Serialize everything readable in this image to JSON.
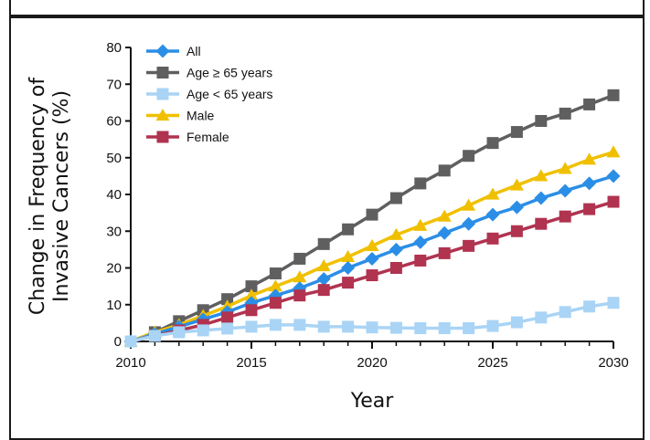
{
  "chart_data": {
    "type": "line",
    "title": "",
    "xlabel": "Year",
    "ylabel_line1": "Change in Frequency of",
    "ylabel_line2": "Invasive Cancers (%)",
    "x": [
      2010,
      2011,
      2012,
      2013,
      2014,
      2015,
      2016,
      2017,
      2018,
      2019,
      2020,
      2021,
      2022,
      2023,
      2024,
      2025,
      2026,
      2027,
      2028,
      2029,
      2030
    ],
    "xlim": [
      2010,
      2030
    ],
    "ylim": [
      0,
      80
    ],
    "xticks": [
      2010,
      2015,
      2020,
      2025,
      2030
    ],
    "yticks": [
      0,
      10,
      20,
      30,
      40,
      50,
      60,
      70,
      80
    ],
    "grid": false,
    "legend_position": "top-left",
    "series": [
      {
        "name": "All",
        "color": "#2b8ee6",
        "marker": "diamond",
        "values": [
          0,
          2,
          4,
          6,
          8,
          10.5,
          12.5,
          14.5,
          17,
          20,
          22.5,
          25,
          27,
          29.5,
          32,
          34.5,
          36.5,
          39,
          41,
          43,
          45
        ]
      },
      {
        "name": "Age ≥ 65 years",
        "color": "#5f5f5f",
        "marker": "square",
        "values": [
          0,
          2.5,
          5.5,
          8.5,
          11.5,
          15,
          18.5,
          22.5,
          26.5,
          30.5,
          34.5,
          39,
          43,
          46.5,
          50.5,
          54,
          57,
          60,
          62,
          64.5,
          67
        ]
      },
      {
        "name": "Age < 65 years",
        "color": "#a9d4f5",
        "marker": "square",
        "values": [
          0,
          1.5,
          2.5,
          3,
          3.5,
          4,
          4.5,
          4.5,
          4,
          4,
          3.8,
          3.7,
          3.6,
          3.6,
          3.6,
          4.2,
          5.2,
          6.5,
          8,
          9.5,
          10.5
        ]
      },
      {
        "name": "Male",
        "color": "#f0c000",
        "marker": "triangle",
        "values": [
          0,
          2.5,
          4.5,
          7,
          9.5,
          12.5,
          15,
          17.5,
          20.5,
          23,
          26,
          29,
          31.5,
          34,
          37,
          40,
          42.5,
          45,
          47,
          49.5,
          51.5
        ]
      },
      {
        "name": "Female",
        "color": "#b03350",
        "marker": "square",
        "values": [
          0,
          1.5,
          3,
          4.5,
          6.5,
          8.5,
          10.5,
          12.5,
          14,
          16,
          18,
          20,
          22,
          24,
          26,
          28,
          30,
          32,
          34,
          36,
          38
        ]
      }
    ]
  }
}
